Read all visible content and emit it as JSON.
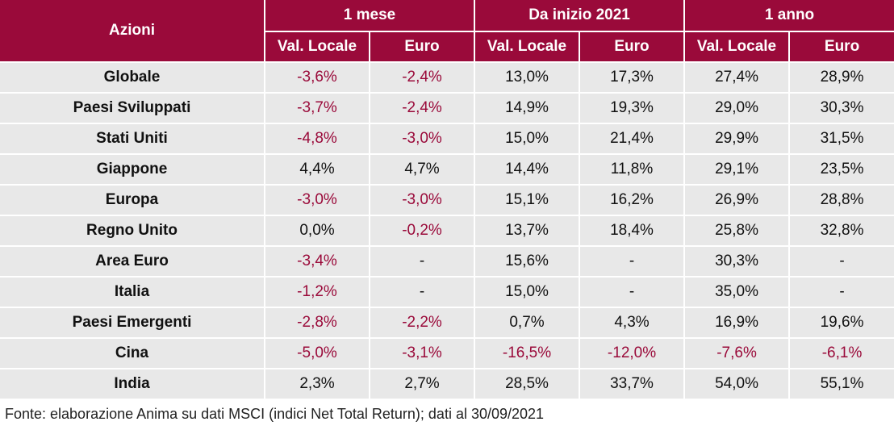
{
  "table": {
    "header": {
      "row_label": "Azioni",
      "groups": [
        "1 mese",
        "Da inizio 2021",
        "1 anno"
      ],
      "subheaders": [
        "Val. Locale",
        "Euro",
        "Val. Locale",
        "Euro",
        "Val. Locale",
        "Euro"
      ]
    },
    "rows": [
      {
        "name": "Globale",
        "values": [
          "-3,6%",
          "-2,4%",
          "13,0%",
          "17,3%",
          "27,4%",
          "28,9%"
        ]
      },
      {
        "name": "Paesi Sviluppati",
        "values": [
          "-3,7%",
          "-2,4%",
          "14,9%",
          "19,3%",
          "29,0%",
          "30,3%"
        ]
      },
      {
        "name": "Stati Uniti",
        "values": [
          "-4,8%",
          "-3,0%",
          "15,0%",
          "21,4%",
          "29,9%",
          "31,5%"
        ]
      },
      {
        "name": "Giappone",
        "values": [
          "4,4%",
          "4,7%",
          "14,4%",
          "11,8%",
          "29,1%",
          "23,5%"
        ]
      },
      {
        "name": "Europa",
        "values": [
          "-3,0%",
          "-3,0%",
          "15,1%",
          "16,2%",
          "26,9%",
          "28,8%"
        ]
      },
      {
        "name": "Regno Unito",
        "values": [
          "0,0%",
          "-0,2%",
          "13,7%",
          "18,4%",
          "25,8%",
          "32,8%"
        ]
      },
      {
        "name": "Area Euro",
        "values": [
          "-3,4%",
          "-",
          "15,6%",
          "-",
          "30,3%",
          "-"
        ]
      },
      {
        "name": "Italia",
        "values": [
          "-1,2%",
          "-",
          "15,0%",
          "-",
          "35,0%",
          "-"
        ]
      },
      {
        "name": "Paesi Emergenti",
        "values": [
          "-2,8%",
          "-2,2%",
          "0,7%",
          "4,3%",
          "16,9%",
          "19,6%"
        ]
      },
      {
        "name": "Cina",
        "values": [
          "-5,0%",
          "-3,1%",
          "-16,5%",
          "-12,0%",
          "-7,6%",
          "-6,1%"
        ]
      },
      {
        "name": "India",
        "values": [
          "2,3%",
          "2,7%",
          "28,5%",
          "33,7%",
          "54,0%",
          "55,1%"
        ]
      }
    ]
  },
  "footer": {
    "source_text": "Fonte: elaborazione Anima su dati MSCI (indici Net Total Return); dati al 30/09/2021"
  },
  "colors": {
    "header_background": "#9a0a3a",
    "header_text": "#ffffff",
    "row_background": "#e8e8e8",
    "negative_text": "#9a0a3a"
  }
}
